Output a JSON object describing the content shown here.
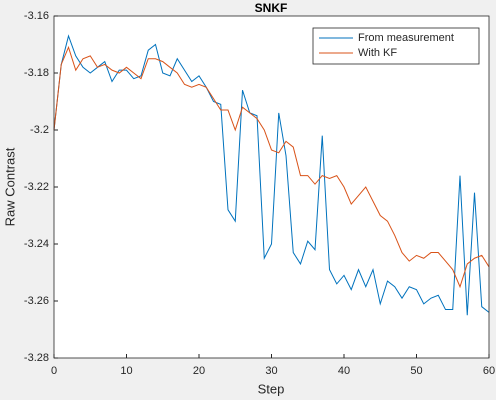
{
  "chart_data": {
    "type": "line",
    "title": "SNKF",
    "xlabel": "Step",
    "ylabel": "Raw Contrast",
    "x": [
      0,
      1,
      2,
      3,
      4,
      5,
      6,
      7,
      8,
      9,
      10,
      11,
      12,
      13,
      14,
      15,
      16,
      17,
      18,
      19,
      20,
      21,
      22,
      23,
      24,
      25,
      26,
      27,
      28,
      29,
      30,
      31,
      32,
      33,
      34,
      35,
      36,
      37,
      38,
      39,
      40,
      41,
      42,
      43,
      44,
      45,
      46,
      47,
      48,
      49,
      50,
      51,
      52,
      53,
      54,
      55,
      56,
      57,
      58,
      59,
      60
    ],
    "series": [
      {
        "name": "From measurement",
        "color": "#0072bd",
        "values": [
          -3.2,
          -3.177,
          -3.167,
          -3.174,
          -3.178,
          -3.18,
          -3.178,
          -3.176,
          -3.183,
          -3.179,
          -3.179,
          -3.182,
          -3.181,
          -3.172,
          -3.17,
          -3.18,
          -3.181,
          -3.175,
          -3.179,
          -3.183,
          -3.181,
          -3.185,
          -3.19,
          -3.191,
          -3.228,
          -3.232,
          -3.186,
          -3.194,
          -3.195,
          -3.245,
          -3.24,
          -3.194,
          -3.209,
          -3.243,
          -3.247,
          -3.239,
          -3.242,
          -3.202,
          -3.249,
          -3.254,
          -3.251,
          -3.256,
          -3.249,
          -3.255,
          -3.249,
          -3.261,
          -3.253,
          -3.255,
          -3.259,
          -3.255,
          -3.256,
          -3.261,
          -3.259,
          -3.258,
          -3.263,
          -3.263,
          -3.216,
          -3.265,
          -3.222,
          -3.262,
          -3.264
        ]
      },
      {
        "name": "With KF",
        "color": "#d95319",
        "values": [
          -3.2,
          -3.177,
          -3.171,
          -3.179,
          -3.175,
          -3.174,
          -3.178,
          -3.177,
          -3.179,
          -3.18,
          -3.178,
          -3.18,
          -3.182,
          -3.175,
          -3.175,
          -3.176,
          -3.178,
          -3.18,
          -3.184,
          -3.185,
          -3.184,
          -3.185,
          -3.189,
          -3.193,
          -3.193,
          -3.2,
          -3.192,
          -3.194,
          -3.196,
          -3.2,
          -3.207,
          -3.208,
          -3.204,
          -3.206,
          -3.216,
          -3.216,
          -3.219,
          -3.216,
          -3.217,
          -3.216,
          -3.22,
          -3.226,
          -3.223,
          -3.22,
          -3.225,
          -3.23,
          -3.232,
          -3.237,
          -3.243,
          -3.246,
          -3.244,
          -3.245,
          -3.243,
          -3.243,
          -3.246,
          -3.249,
          -3.255,
          -3.247,
          -3.245,
          -3.244,
          -3.248
        ]
      }
    ],
    "xlim": [
      0,
      60
    ],
    "xticks": [
      0,
      10,
      20,
      30,
      40,
      50,
      60
    ],
    "ylim": [
      -3.28,
      -3.16
    ],
    "yticks": [
      -3.28,
      -3.26,
      -3.24,
      -3.22,
      -3.2,
      -3.18,
      -3.16
    ],
    "legend": "upper right"
  }
}
